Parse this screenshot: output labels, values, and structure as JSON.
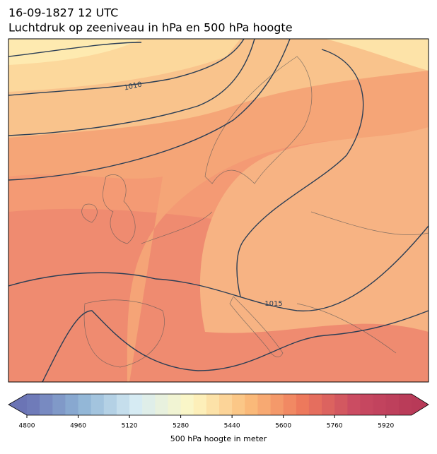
{
  "title": "16-09-1827 12 UTC",
  "subtitle": "Luchtdruk op zeeniveau in hPa en 500 hPa hoogte",
  "contour_labels": [
    "1010",
    "1015"
  ],
  "colorbar": {
    "label": "500 hPa hoogte in meter",
    "lim": [
      4800,
      6000
    ],
    "step": 40,
    "ticks": [
      4800,
      4960,
      5120,
      5280,
      5440,
      5600,
      5760,
      5920
    ],
    "colors": [
      "#6b74b5",
      "#8fb4d6",
      "#d7ecf3",
      "#fdf7c4",
      "#fbbf7c",
      "#ee7a5c",
      "#c94a62",
      "#b83a58"
    ]
  }
}
